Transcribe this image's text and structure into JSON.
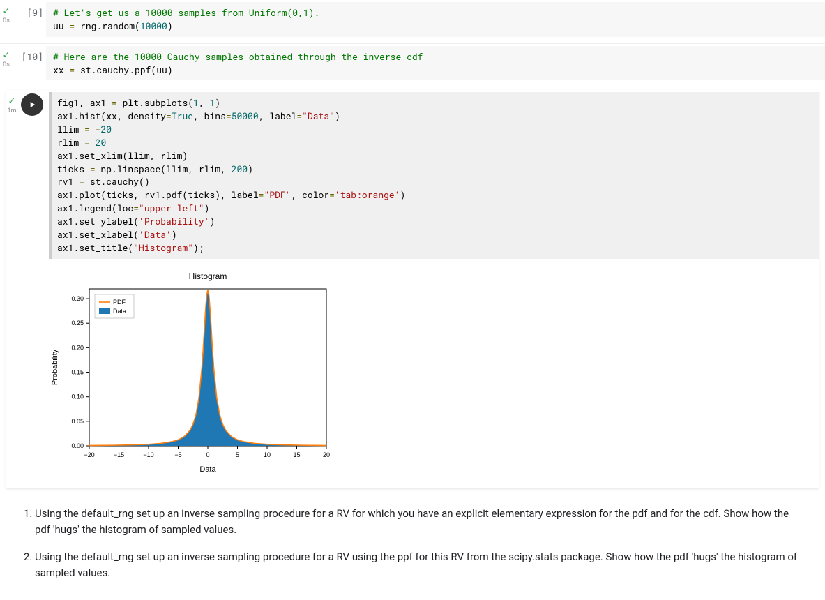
{
  "cells": {
    "cell1": {
      "execution_count": "[9]",
      "timing": "0s",
      "line1_comment": "# Let's get us a 10000 samples from Uniform(0,1).",
      "line2_lhs": "uu ",
      "line2_op": "=",
      "line2_rhs": " rng.random(",
      "line2_num": "10000",
      "line2_close": ")"
    },
    "cell2": {
      "execution_count": "[10]",
      "timing": "0s",
      "line1_comment": "# Here are the 10000 Cauchy samples obtained through the inverse cdf",
      "line2_lhs": "xx ",
      "line2_op": "=",
      "line2_rhs": " st.cauchy.ppf(uu)"
    },
    "cell3": {
      "timing": "1m",
      "code_lines": [
        [
          {
            "t": "fig1, ax1 ",
            "c": "c-name"
          },
          {
            "t": "=",
            "c": "c-op"
          },
          {
            "t": " plt.subplots(",
            "c": "c-name"
          },
          {
            "t": "1",
            "c": "c-num"
          },
          {
            "t": ", ",
            "c": "c-name"
          },
          {
            "t": "1",
            "c": "c-num"
          },
          {
            "t": ")",
            "c": "c-name"
          }
        ],
        [
          {
            "t": "ax1.hist(xx, density",
            "c": "c-name"
          },
          {
            "t": "=",
            "c": "c-op"
          },
          {
            "t": "True",
            "c": "c-bool"
          },
          {
            "t": ", bins",
            "c": "c-name"
          },
          {
            "t": "=",
            "c": "c-op"
          },
          {
            "t": "50000",
            "c": "c-num"
          },
          {
            "t": ", label",
            "c": "c-name"
          },
          {
            "t": "=",
            "c": "c-op"
          },
          {
            "t": "\"Data\"",
            "c": "c-str"
          },
          {
            "t": ")",
            "c": "c-name"
          }
        ],
        [
          {
            "t": "llim ",
            "c": "c-name"
          },
          {
            "t": "=",
            "c": "c-op"
          },
          {
            "t": " ",
            "c": "c-name"
          },
          {
            "t": "-",
            "c": "c-op"
          },
          {
            "t": "20",
            "c": "c-num"
          }
        ],
        [
          {
            "t": "rlim ",
            "c": "c-name"
          },
          {
            "t": "=",
            "c": "c-op"
          },
          {
            "t": " ",
            "c": "c-name"
          },
          {
            "t": "20",
            "c": "c-num"
          }
        ],
        [
          {
            "t": "ax1.set_xlim(llim, rlim)",
            "c": "c-name"
          }
        ],
        [
          {
            "t": "ticks ",
            "c": "c-name"
          },
          {
            "t": "=",
            "c": "c-op"
          },
          {
            "t": " np.linspace(llim, rlim, ",
            "c": "c-name"
          },
          {
            "t": "200",
            "c": "c-num"
          },
          {
            "t": ")",
            "c": "c-name"
          }
        ],
        [
          {
            "t": "rv1 ",
            "c": "c-name"
          },
          {
            "t": "=",
            "c": "c-op"
          },
          {
            "t": " st.cauchy()",
            "c": "c-name"
          }
        ],
        [
          {
            "t": "ax1.plot(ticks, rv1.pdf(ticks), label",
            "c": "c-name"
          },
          {
            "t": "=",
            "c": "c-op"
          },
          {
            "t": "\"PDF\"",
            "c": "c-str"
          },
          {
            "t": ", color",
            "c": "c-name"
          },
          {
            "t": "=",
            "c": "c-op"
          },
          {
            "t": "'tab:orange'",
            "c": "c-str"
          },
          {
            "t": ")",
            "c": "c-name"
          }
        ],
        [
          {
            "t": "ax1.legend(loc",
            "c": "c-name"
          },
          {
            "t": "=",
            "c": "c-op"
          },
          {
            "t": "\"upper left\"",
            "c": "c-str"
          },
          {
            "t": ")",
            "c": "c-name"
          }
        ],
        [
          {
            "t": "ax1.set_ylabel(",
            "c": "c-name"
          },
          {
            "t": "'Probability'",
            "c": "c-str"
          },
          {
            "t": ")",
            "c": "c-name"
          }
        ],
        [
          {
            "t": "ax1.set_xlabel(",
            "c": "c-name"
          },
          {
            "t": "'Data'",
            "c": "c-str"
          },
          {
            "t": ")",
            "c": "c-name"
          }
        ],
        [
          {
            "t": "ax1.set_title(",
            "c": "c-name"
          },
          {
            "t": "\"Histogram\"",
            "c": "c-str"
          },
          {
            "t": ");",
            "c": "c-name"
          }
        ]
      ]
    }
  },
  "chart": {
    "title": "Histogram",
    "xlabel": "Data",
    "ylabel": "Probability",
    "xlim": [
      -20,
      20
    ],
    "ylim": [
      0,
      0.32
    ],
    "xticks": [
      -20,
      -15,
      -10,
      -5,
      0,
      5,
      10,
      15,
      20
    ],
    "yticks": [
      0.0,
      0.05,
      0.1,
      0.15,
      0.2,
      0.25,
      0.3
    ],
    "ytick_labels": [
      "0.00",
      "0.05",
      "0.10",
      "0.15",
      "0.20",
      "0.25",
      "0.30"
    ],
    "pdf_color": "#ff7f0e",
    "data_color": "#1f77b4",
    "axis_color": "#000000",
    "background": "#ffffff",
    "legend_items": [
      {
        "label": "PDF",
        "color": "#ff7f0e",
        "type": "line"
      },
      {
        "label": "Data",
        "color": "#1f77b4",
        "type": "patch"
      }
    ],
    "title_fontsize": 12,
    "label_fontsize": 11,
    "tick_fontsize": 9,
    "legend_fontsize": 9,
    "pdf_points_x": [
      -20,
      -18,
      -16,
      -14,
      -12,
      -10,
      -8,
      -6,
      -5,
      -4,
      -3,
      -2.5,
      -2,
      -1.5,
      -1,
      -0.8,
      -0.6,
      -0.4,
      -0.2,
      0,
      0.2,
      0.4,
      0.6,
      0.8,
      1,
      1.5,
      2,
      2.5,
      3,
      4,
      5,
      6,
      8,
      10,
      12,
      14,
      16,
      18,
      20
    ],
    "pdf_points_y": [
      0.00079,
      0.00098,
      0.00124,
      0.00162,
      0.0022,
      0.00315,
      0.0049,
      0.0086,
      0.01224,
      0.01872,
      0.03183,
      0.0439,
      0.06366,
      0.09794,
      0.15915,
      0.19411,
      0.23405,
      0.2744,
      0.30595,
      0.31831,
      0.30595,
      0.2744,
      0.23405,
      0.19411,
      0.15915,
      0.09794,
      0.06366,
      0.0439,
      0.03183,
      0.01872,
      0.01224,
      0.0086,
      0.0049,
      0.00315,
      0.0022,
      0.00162,
      0.00124,
      0.00098,
      0.00079
    ]
  },
  "text_cell": {
    "item1": "Using the default_rng set up an inverse sampling procedure for a RV for which you have an explicit elementary expression for the pdf and for the cdf. Show how the pdf 'hugs' the histogram of sampled values.",
    "item2": "Using the default_rng set up an inverse sampling procedure for a RV using the ppf for this RV from the scipy.stats package. Show how the pdf 'hugs' the histogram of sampled values."
  }
}
